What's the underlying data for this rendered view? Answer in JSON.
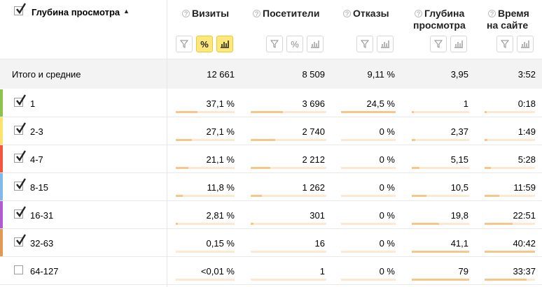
{
  "header": {
    "dimension_label": "Глубина просмотра",
    "sort_arrow": "▲",
    "columns": [
      {
        "title1": "Визиты",
        "title2": ""
      },
      {
        "title1": "Посетители",
        "title2": ""
      },
      {
        "title1": "Отказы",
        "title2": ""
      },
      {
        "title1": "Глубина",
        "title2": "просмотра"
      },
      {
        "title1": "Время",
        "title2": "на сайте"
      }
    ],
    "help_glyph": "?",
    "percent_glyph": "%"
  },
  "totals": {
    "label": "Итого и средние",
    "values": [
      "12 661",
      "8 509",
      "9,11 %",
      "3,95",
      "3:52"
    ]
  },
  "colors": {
    "accent": "#ffe87a",
    "stripes": [
      "#8bc34a",
      "#ffe26a",
      "#f4553f",
      "#7fb8ea",
      "#b25bd0",
      "#e29a52"
    ]
  },
  "rows": [
    {
      "label": "1",
      "checked": true,
      "values": [
        "37,1 %",
        "3 696",
        "24,5 %",
        "1",
        "0:18"
      ],
      "bars": [
        0.37,
        0.43,
        1.0,
        0.02,
        0.01
      ]
    },
    {
      "label": "2-3",
      "checked": true,
      "values": [
        "27,1 %",
        "2 740",
        "0 %",
        "2,37",
        "1:49"
      ],
      "bars": [
        0.27,
        0.32,
        0.0,
        0.06,
        0.05
      ]
    },
    {
      "label": "4-7",
      "checked": true,
      "values": [
        "21,1 %",
        "2 212",
        "0 %",
        "5,15",
        "5:28"
      ],
      "bars": [
        0.21,
        0.26,
        0.0,
        0.13,
        0.13
      ]
    },
    {
      "label": "8-15",
      "checked": true,
      "values": [
        "11,8 %",
        "1 262",
        "0 %",
        "10,5",
        "11:59"
      ],
      "bars": [
        0.12,
        0.15,
        0.0,
        0.26,
        0.29
      ]
    },
    {
      "label": "16-31",
      "checked": true,
      "values": [
        "2,81 %",
        "301",
        "0 %",
        "19,8",
        "22:51"
      ],
      "bars": [
        0.03,
        0.04,
        0.0,
        0.48,
        0.56
      ]
    },
    {
      "label": "32-63",
      "checked": true,
      "values": [
        "0,15 %",
        "16",
        "0 %",
        "41,1",
        "40:42"
      ],
      "bars": [
        0.0,
        0.0,
        0.0,
        1.0,
        1.0
      ]
    },
    {
      "label": "64-127",
      "checked": false,
      "values": [
        "<0,01 %",
        "1",
        "0 %",
        "79",
        "33:37"
      ],
      "bars": [
        0.0,
        0.0,
        0.0,
        1.0,
        0.83
      ]
    }
  ]
}
